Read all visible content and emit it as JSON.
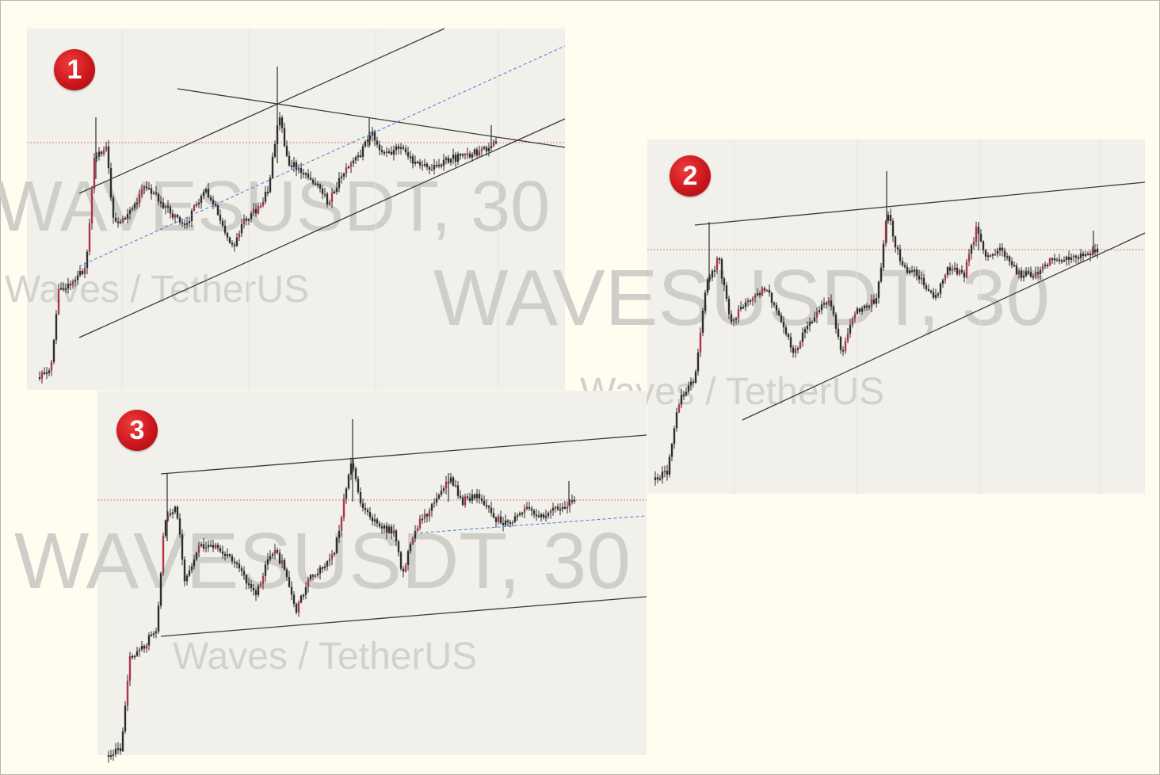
{
  "chart_data": [
    {
      "type": "candlestick",
      "badge": "1",
      "watermark_symbol": "WAVESUSDT, 30",
      "watermark_name": "Waves / TetherUS",
      "pattern_lines": [
        "ascending channel upper",
        "ascending channel lower",
        "channel midline (dashed)",
        "descending resistance"
      ],
      "colors": {
        "candle": "#2d2d2d",
        "up_accent": "#b0344a",
        "trendline": "#3a3a3a",
        "midline": "#4a78d8",
        "price_line": "#e07a7a"
      }
    },
    {
      "type": "candlestick",
      "badge": "2",
      "watermark_symbol": "WAVESUSDT, 30",
      "watermark_name": "Waves / TetherUS",
      "pattern_lines": [
        "rising resistance",
        "rising support"
      ],
      "colors": {
        "candle": "#2d2d2d",
        "up_accent": "#b0344a",
        "trendline": "#3a3a3a",
        "price_line": "#e07a7a"
      }
    },
    {
      "type": "candlestick",
      "badge": "3",
      "watermark_symbol": "WAVESUSDT, 30",
      "watermark_name": "Waves / TetherUS",
      "pattern_lines": [
        "rising resistance",
        "rising support",
        "midline (dashed)"
      ],
      "colors": {
        "candle": "#2d2d2d",
        "up_accent": "#b0344a",
        "trendline": "#3a3a3a",
        "midline": "#4a78d8",
        "price_line": "#e07a7a"
      }
    }
  ]
}
